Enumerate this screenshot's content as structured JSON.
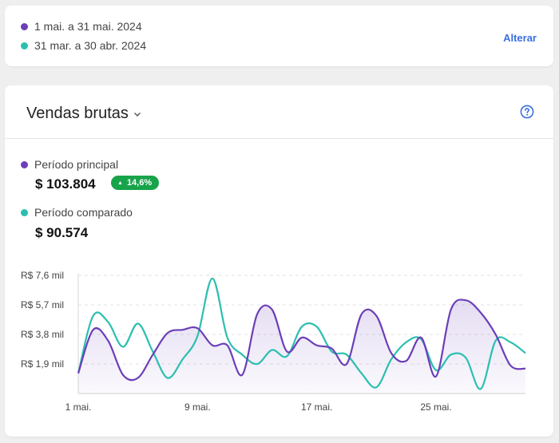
{
  "date_range": {
    "primary_label": "1 mai. a 31 mai. 2024",
    "comparison_label": "31 mar. a 30 abr. 2024",
    "change_link": "Alterar"
  },
  "metric": {
    "title": "Vendas brutas",
    "primary_label": "Período principal",
    "primary_value": "$ 103.804",
    "change_badge": "14,6%",
    "comparison_label": "Período comparado",
    "comparison_value": "$ 90.574"
  },
  "colors": {
    "primary": "#6b3fb8",
    "comparison": "#2bbfb0",
    "badge": "#17a34a",
    "link": "#3b6fe0"
  },
  "icons": [
    "chevron-down-icon",
    "help-circle-icon"
  ],
  "chart_data": {
    "type": "line",
    "x": [
      1,
      2,
      3,
      4,
      5,
      6,
      7,
      8,
      9,
      10,
      11,
      12,
      13,
      14,
      15,
      16,
      17,
      18,
      19,
      20,
      21,
      22,
      23,
      24,
      25,
      26,
      27,
      28,
      29,
      30,
      31
    ],
    "x_tick_labels": [
      {
        "x": 1,
        "label": "1 mai."
      },
      {
        "x": 9,
        "label": "9 mai."
      },
      {
        "x": 17,
        "label": "17 mai."
      },
      {
        "x": 25,
        "label": "25 mai."
      }
    ],
    "y_ticks": [
      {
        "value": 1.9,
        "label": "R$ 1,9 mil"
      },
      {
        "value": 3.8,
        "label": "R$ 3,8 mil"
      },
      {
        "value": 5.7,
        "label": "R$ 5,7 mil"
      },
      {
        "value": 7.6,
        "label": "R$ 7,6 mil"
      }
    ],
    "ylim": [
      0,
      7.6
    ],
    "grid": true,
    "series": [
      {
        "values": [
          1.3,
          4.1,
          3.4,
          1.2,
          1.0,
          2.5,
          3.9,
          4.1,
          4.2,
          3.1,
          3.1,
          1.2,
          5.1,
          5.4,
          2.7,
          3.6,
          3.1,
          2.9,
          1.9,
          5.1,
          5.0,
          2.6,
          2.1,
          3.6,
          1.1,
          5.4,
          6.0,
          5.2,
          3.8,
          1.8,
          1.6
        ],
        "fill": true
      },
      {
        "values": [
          1.3,
          5.0,
          4.6,
          3.0,
          4.5,
          2.7,
          1.0,
          2.2,
          3.7,
          7.4,
          3.6,
          2.5,
          1.9,
          2.8,
          2.4,
          4.3,
          4.3,
          2.7,
          2.5,
          1.3,
          0.4,
          2.2,
          3.3,
          3.5,
          1.5,
          2.5,
          2.3,
          0.3,
          3.4,
          3.3,
          2.6
        ],
        "fill": false
      }
    ]
  }
}
